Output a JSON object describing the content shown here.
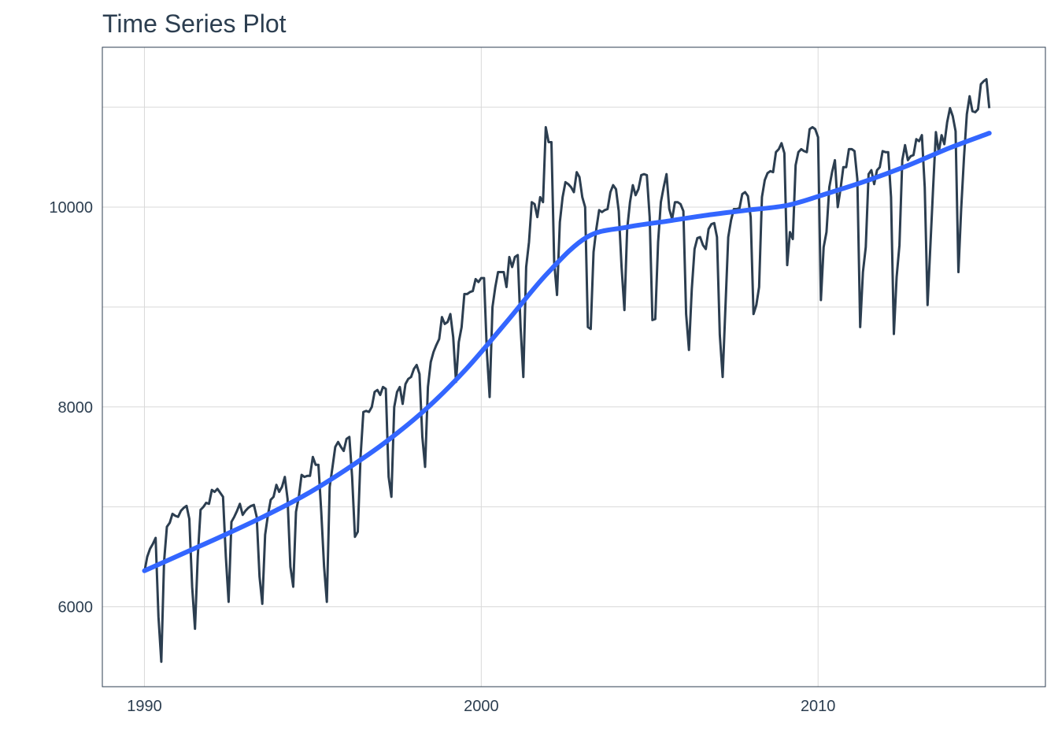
{
  "chart_data": {
    "type": "line",
    "title": "Time Series Plot",
    "xlabel": "",
    "ylabel": "",
    "x_ticks": [
      1990,
      2000,
      2010
    ],
    "y_ticks": [
      6000,
      8000,
      10000
    ],
    "xlim": [
      1988.75,
      2016.75
    ],
    "ylim": [
      5200,
      11600
    ],
    "grid": true,
    "legend": "none",
    "colors": {
      "series": "#2c3e50",
      "trend": "#3366ff",
      "grid": "#d9d9d9",
      "border": "#2c3e50"
    },
    "series": [
      {
        "values": [
          6350,
          6500,
          6580,
          6630,
          6690,
          5900,
          5450,
          6450,
          6800,
          6840,
          6930,
          6910,
          6900,
          6960,
          6990,
          7010,
          6880,
          6200,
          5780,
          6500,
          6970,
          7000,
          7040,
          7030,
          7170,
          7150,
          7180,
          7140,
          7100,
          6500,
          6050,
          6850,
          6900,
          6960,
          7030,
          6920,
          6960,
          6990,
          7010,
          7020,
          6900,
          6300,
          6030,
          6720,
          6920,
          7070,
          7100,
          7220,
          7150,
          7200,
          7300,
          7080,
          6400,
          6200,
          6950,
          7100,
          7320,
          7300,
          7310,
          7310,
          7500,
          7420,
          7420,
          6950,
          6400,
          6050,
          7200,
          7400,
          7600,
          7650,
          7600,
          7560,
          7680,
          7700,
          7300,
          6700,
          6750,
          7500,
          7950,
          7960,
          7950,
          8000,
          8150,
          8170,
          8120,
          8200,
          8180,
          7300,
          7100,
          8000,
          8150,
          8200,
          8030,
          8230,
          8280,
          8300,
          8380,
          8420,
          8330,
          7700,
          7400,
          8200,
          8450,
          8550,
          8620,
          8680,
          8900,
          8830,
          8850,
          8930,
          8700,
          8250,
          8650,
          8800,
          9130,
          9130,
          9150,
          9160,
          9280,
          9250,
          9290,
          9290,
          8550,
          8100,
          9000,
          9200,
          9350,
          9350,
          9350,
          9200,
          9500,
          9400,
          9500,
          9520,
          8800,
          8300,
          9400,
          9650,
          10050,
          10030,
          9900,
          10100,
          10050,
          10800,
          10650,
          10650,
          9450,
          9120,
          9850,
          10100,
          10250,
          10230,
          10200,
          10150,
          10350,
          10300,
          10100,
          10000,
          8800,
          8780,
          9550,
          9780,
          9970,
          9950,
          9970,
          9980,
          10150,
          10220,
          10180,
          9960,
          9400,
          8970,
          9780,
          10050,
          10220,
          10120,
          10180,
          10320,
          10330,
          10320,
          9900,
          8870,
          8880,
          9650,
          10050,
          10200,
          10330,
          9980,
          9880,
          10050,
          10050,
          10030,
          9960,
          8930,
          8570,
          9180,
          9580,
          9690,
          9700,
          9620,
          9580,
          9780,
          9830,
          9840,
          9700,
          8720,
          8300,
          8990,
          9700,
          9870,
          9980,
          9980,
          9990,
          10130,
          10150,
          10110,
          9900,
          8930,
          9020,
          9200,
          10100,
          10270,
          10340,
          10360,
          10350,
          10550,
          10580,
          10640,
          10540,
          9420,
          9750,
          9680,
          10420,
          10550,
          10580,
          10560,
          10550,
          10780,
          10800,
          10780,
          10700,
          9070,
          9600,
          9750,
          10200,
          10350,
          10470,
          10000,
          10180,
          10400,
          10400,
          10580,
          10580,
          10560,
          10280,
          8800,
          9350,
          9600,
          10330,
          10370,
          10230,
          10370,
          10400,
          10560,
          10550,
          10550,
          10100,
          8730,
          9300,
          9620,
          10470,
          10620,
          10470,
          10510,
          10520,
          10680,
          10660,
          10720,
          10200,
          9020,
          9600,
          10200,
          10750,
          10550,
          10720,
          10630,
          10850,
          10990,
          10910,
          10760,
          9350,
          9980,
          10500,
          10930,
          11110,
          10960,
          10950,
          10980,
          11230,
          11260,
          11280,
          10990
        ]
      },
      {
        "values": [
          6360,
          6540,
          6720,
          6910,
          7120,
          7370,
          7650,
          7980,
          8380,
          8850,
          9330,
          9700,
          9800,
          9860,
          9920,
          9970,
          10020,
          10140,
          10270,
          10420,
          10590,
          10740
        ]
      }
    ]
  }
}
